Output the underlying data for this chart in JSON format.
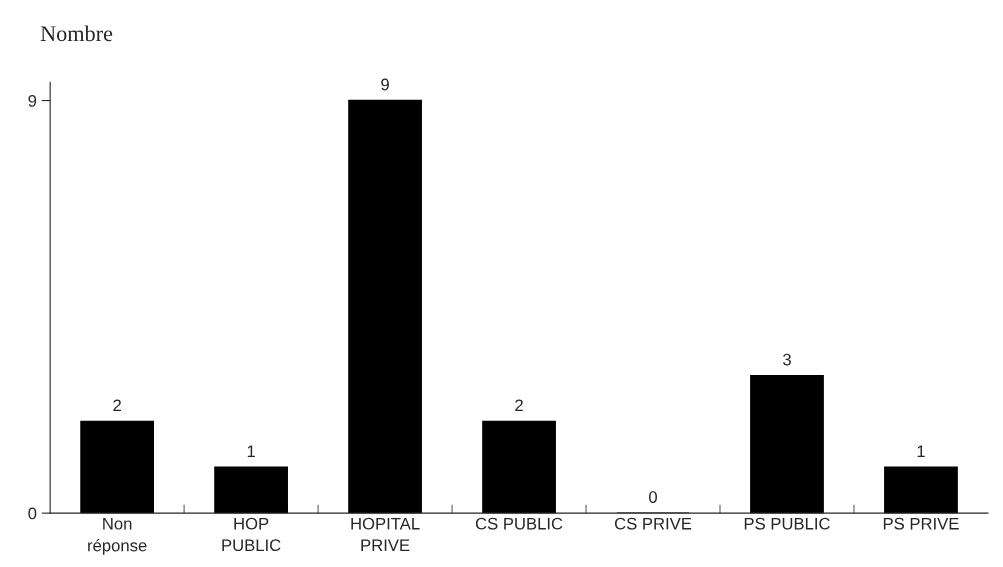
{
  "chart_data": {
    "type": "bar",
    "ylabel": "Nombre",
    "categories": [
      "Non\nréponse",
      "HOP\nPUBLIC",
      "HOPITAL\nPRIVE",
      "CS PUBLIC",
      "CS PRIVE",
      "PS PUBLIC",
      "PS PRIVE"
    ],
    "values": [
      2,
      1,
      9,
      2,
      0,
      3,
      1
    ],
    "color": "#000000",
    "ylim": [
      0,
      9.4
    ],
    "yticks": [
      0,
      9
    ],
    "data_labels": true
  }
}
